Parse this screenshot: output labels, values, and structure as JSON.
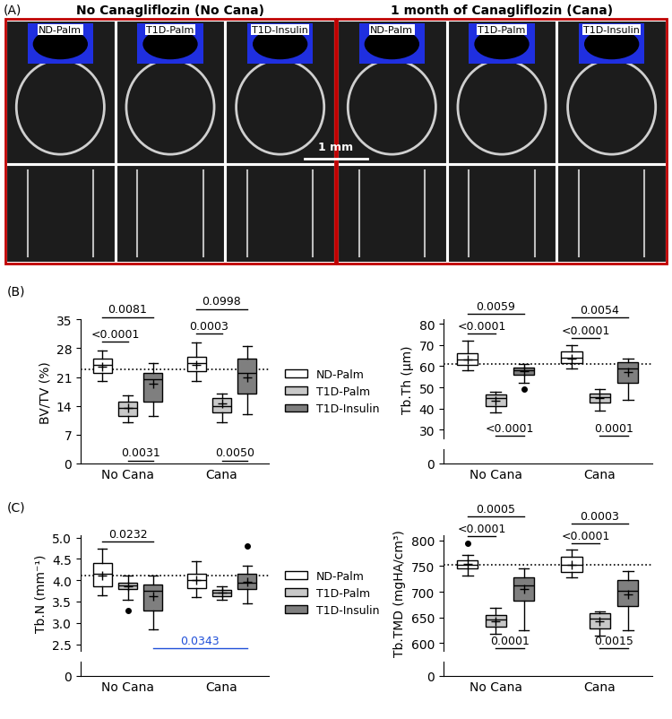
{
  "panel_a": {
    "label": "(A)",
    "headers": [
      "No Canagliflozin (No Cana)",
      "1 month of Canagliflozin (Cana)"
    ],
    "columns": [
      "ND-Palm",
      "T1D-Palm",
      "T1D-Insulin"
    ],
    "scale_bar": "1 mm"
  },
  "panel_labels": [
    "(B)",
    "(C)"
  ],
  "chart_data": [
    {
      "type": "box",
      "ylabel": "BV/TV (%)",
      "ylim": [
        0,
        35
      ],
      "yticks": [
        0,
        7,
        14,
        21,
        28,
        35
      ],
      "reference_line": 22.8,
      "categories": [
        "No Cana",
        "Cana"
      ],
      "legend": "center left",
      "series": [
        {
          "name": "ND-Palm",
          "color": "#ffffff",
          "boxes": [
            {
              "low": 20,
              "q1": 22,
              "median": 24,
              "q3": 25.5,
              "high": 27.5,
              "mean": 23.5,
              "outliers": []
            },
            {
              "low": 20,
              "q1": 22.5,
              "median": 24.5,
              "q3": 26,
              "high": 29.5,
              "mean": 24,
              "outliers": []
            }
          ]
        },
        {
          "name": "T1D-Palm",
          "color": "#c8c8c8",
          "boxes": [
            {
              "low": 10,
              "q1": 11.5,
              "median": 13.5,
              "q3": 15,
              "high": 16.5,
              "mean": 13.5,
              "outliers": []
            },
            {
              "low": 10,
              "q1": 12.5,
              "median": 14,
              "q3": 16,
              "high": 17,
              "mean": 14.5,
              "outliers": []
            }
          ]
        },
        {
          "name": "T1D-Insulin",
          "color": "#7f7f7f",
          "boxes": [
            {
              "low": 11.5,
              "q1": 15,
              "median": 20.5,
              "q3": 22,
              "high": 24.5,
              "mean": 19.3,
              "outliers": []
            },
            {
              "low": 12,
              "q1": 17,
              "median": 22,
              "q3": 25.5,
              "high": 28.5,
              "mean": 21,
              "outliers": []
            }
          ]
        }
      ],
      "comparisons": [
        {
          "from": [
            "No Cana",
            "ND-Palm"
          ],
          "to": [
            "No Cana",
            "T1D-Palm"
          ],
          "label": "<0.0001",
          "side": "above"
        },
        {
          "from": [
            "No Cana",
            "ND-Palm"
          ],
          "to": [
            "No Cana",
            "T1D-Insulin"
          ],
          "label": "0.0081",
          "side": "above"
        },
        {
          "from": [
            "No Cana",
            "T1D-Palm"
          ],
          "to": [
            "No Cana",
            "T1D-Insulin"
          ],
          "label": "0.0031",
          "side": "below"
        },
        {
          "from": [
            "Cana",
            "ND-Palm"
          ],
          "to": [
            "Cana",
            "T1D-Palm"
          ],
          "label": "0.0003",
          "side": "above"
        },
        {
          "from": [
            "Cana",
            "ND-Palm"
          ],
          "to": [
            "Cana",
            "T1D-Insulin"
          ],
          "label": "0.0998",
          "side": "above"
        },
        {
          "from": [
            "Cana",
            "T1D-Palm"
          ],
          "to": [
            "Cana",
            "T1D-Insulin"
          ],
          "label": "0.0050",
          "side": "below"
        }
      ]
    },
    {
      "type": "box",
      "ylabel": "Tb.Th (µm)",
      "ylim": [
        26,
        82
      ],
      "yticks": [
        30,
        40,
        50,
        60,
        70,
        80
      ],
      "broken_axis": {
        "ylim": [
          0,
          2
        ],
        "yticks": [
          0
        ]
      },
      "reference_line": 61,
      "categories": [
        "No Cana",
        "Cana"
      ],
      "series": [
        {
          "name": "ND-Palm",
          "color": "#ffffff",
          "boxes": [
            {
              "low": 58,
              "q1": 60.5,
              "median": 63,
              "q3": 66,
              "high": 72,
              "mean": 63,
              "outliers": []
            },
            {
              "low": 59,
              "q1": 61.5,
              "median": 64,
              "q3": 67,
              "high": 70,
              "mean": 63.5,
              "outliers": []
            }
          ]
        },
        {
          "name": "T1D-Palm",
          "color": "#c8c8c8",
          "boxes": [
            {
              "low": 38,
              "q1": 41,
              "median": 45,
              "q3": 46.5,
              "high": 48,
              "mean": 43.5,
              "outliers": []
            },
            {
              "low": 39,
              "q1": 43,
              "median": 45.5,
              "q3": 47,
              "high": 49,
              "mean": 45,
              "outliers": []
            }
          ]
        },
        {
          "name": "T1D-Insulin",
          "color": "#7f7f7f",
          "boxes": [
            {
              "low": 52,
              "q1": 56,
              "median": 58,
              "q3": 59.5,
              "high": 61,
              "mean": 57.5,
              "outliers": [
                49
              ]
            },
            {
              "low": 44,
              "q1": 52,
              "median": 59,
              "q3": 62,
              "high": 63.5,
              "mean": 57,
              "outliers": []
            }
          ]
        }
      ],
      "comparisons": [
        {
          "from": [
            "No Cana",
            "ND-Palm"
          ],
          "to": [
            "No Cana",
            "T1D-Palm"
          ],
          "label": "<0.0001",
          "side": "above"
        },
        {
          "from": [
            "No Cana",
            "ND-Palm"
          ],
          "to": [
            "No Cana",
            "T1D-Insulin"
          ],
          "label": "0.0059",
          "side": "above"
        },
        {
          "from": [
            "No Cana",
            "T1D-Palm"
          ],
          "to": [
            "No Cana",
            "T1D-Insulin"
          ],
          "label": "<0.0001",
          "side": "below"
        },
        {
          "from": [
            "Cana",
            "ND-Palm"
          ],
          "to": [
            "Cana",
            "T1D-Palm"
          ],
          "label": "<0.0001",
          "side": "above"
        },
        {
          "from": [
            "Cana",
            "ND-Palm"
          ],
          "to": [
            "Cana",
            "T1D-Insulin"
          ],
          "label": "0.0054",
          "side": "above"
        },
        {
          "from": [
            "Cana",
            "T1D-Palm"
          ],
          "to": [
            "Cana",
            "T1D-Insulin"
          ],
          "label": "0.0001",
          "side": "below"
        }
      ]
    },
    {
      "type": "box",
      "ylabel": "Tb.N (mm⁻¹)",
      "ylim": [
        2.35,
        5.05
      ],
      "yticks": [
        2.5,
        3.0,
        3.5,
        4.0,
        4.5,
        5.0
      ],
      "broken_axis": {
        "ylim": [
          0,
          0.1
        ],
        "yticks": [
          0
        ]
      },
      "reference_line": 4.1,
      "categories": [
        "No Cana",
        "Cana"
      ],
      "legend": "center left",
      "series": [
        {
          "name": "ND-Palm",
          "color": "#ffffff",
          "boxes": [
            {
              "low": 3.65,
              "q1": 3.85,
              "median": 4.15,
              "q3": 4.4,
              "high": 4.75,
              "mean": 4.1,
              "outliers": []
            },
            {
              "low": 3.6,
              "q1": 3.82,
              "median": 4.0,
              "q3": 4.15,
              "high": 4.45,
              "mean": 4.0,
              "outliers": []
            }
          ]
        },
        {
          "name": "T1D-Palm",
          "color": "#c8c8c8",
          "boxes": [
            {
              "low": 3.55,
              "q1": 3.8,
              "median": 3.88,
              "q3": 3.95,
              "high": 4.1,
              "mean": 3.85,
              "outliers": [
                3.3
              ]
            },
            {
              "low": 3.55,
              "q1": 3.62,
              "median": 3.7,
              "q3": 3.78,
              "high": 3.85,
              "mean": 3.7,
              "outliers": []
            }
          ]
        },
        {
          "name": "T1D-Insulin",
          "color": "#7f7f7f",
          "boxes": [
            {
              "low": 2.85,
              "q1": 3.3,
              "median": 3.75,
              "q3": 3.9,
              "high": 4.1,
              "mean": 3.62,
              "outliers": []
            },
            {
              "low": 3.45,
              "q1": 3.8,
              "median": 3.95,
              "q3": 4.15,
              "high": 4.35,
              "mean": 3.97,
              "outliers": [
                4.8
              ]
            }
          ]
        }
      ],
      "comparisons": [
        {
          "from": [
            "No Cana",
            "ND-Palm"
          ],
          "to": [
            "No Cana",
            "T1D-Insulin"
          ],
          "label": "0.0232",
          "side": "above"
        },
        {
          "from": [
            "No Cana",
            "T1D-Insulin"
          ],
          "to": [
            "Cana",
            "T1D-Insulin"
          ],
          "label": "0.0343",
          "side": "below",
          "color": "#1f4fd8"
        }
      ]
    },
    {
      "type": "box",
      "ylabel": "Tb.TMD (mgHA/cm³)",
      "ylim": [
        585,
        810
      ],
      "yticks": [
        600,
        650,
        700,
        750,
        800
      ],
      "broken_axis": {
        "ylim": [
          0,
          20
        ],
        "yticks": [
          0
        ]
      },
      "reference_line": 752,
      "categories": [
        "No Cana",
        "Cana"
      ],
      "series": [
        {
          "name": "ND-Palm",
          "color": "#ffffff",
          "boxes": [
            {
              "low": 732,
              "q1": 745,
              "median": 752,
              "q3": 762,
              "high": 772,
              "mean": 755,
              "outliers": [
                795
              ]
            },
            {
              "low": 728,
              "q1": 738,
              "median": 752,
              "q3": 768,
              "high": 782,
              "mean": 752,
              "outliers": []
            }
          ]
        },
        {
          "name": "T1D-Palm",
          "color": "#c8c8c8",
          "boxes": [
            {
              "low": 618,
              "q1": 632,
              "median": 645,
              "q3": 655,
              "high": 668,
              "mean": 643,
              "outliers": []
            },
            {
              "low": 615,
              "q1": 628,
              "median": 648,
              "q3": 658,
              "high": 662,
              "mean": 643,
              "outliers": []
            }
          ]
        },
        {
          "name": "T1D-Insulin",
          "color": "#7f7f7f",
          "boxes": [
            {
              "low": 625,
              "q1": 683,
              "median": 712,
              "q3": 728,
              "high": 745,
              "mean": 705,
              "outliers": []
            },
            {
              "low": 625,
              "q1": 672,
              "median": 702,
              "q3": 722,
              "high": 740,
              "mean": 695,
              "outliers": []
            }
          ]
        }
      ],
      "comparisons": [
        {
          "from": [
            "No Cana",
            "ND-Palm"
          ],
          "to": [
            "No Cana",
            "T1D-Palm"
          ],
          "label": "<0.0001",
          "side": "above"
        },
        {
          "from": [
            "No Cana",
            "ND-Palm"
          ],
          "to": [
            "No Cana",
            "T1D-Insulin"
          ],
          "label": "0.0005",
          "side": "above"
        },
        {
          "from": [
            "No Cana",
            "T1D-Palm"
          ],
          "to": [
            "No Cana",
            "T1D-Insulin"
          ],
          "label": "0.0001",
          "side": "below"
        },
        {
          "from": [
            "Cana",
            "ND-Palm"
          ],
          "to": [
            "Cana",
            "T1D-Palm"
          ],
          "label": "<0.0001",
          "side": "above"
        },
        {
          "from": [
            "Cana",
            "ND-Palm"
          ],
          "to": [
            "Cana",
            "T1D-Insulin"
          ],
          "label": "0.0003",
          "side": "above"
        },
        {
          "from": [
            "Cana",
            "T1D-Palm"
          ],
          "to": [
            "Cana",
            "T1D-Insulin"
          ],
          "label": "0.0015",
          "side": "below"
        }
      ]
    }
  ]
}
